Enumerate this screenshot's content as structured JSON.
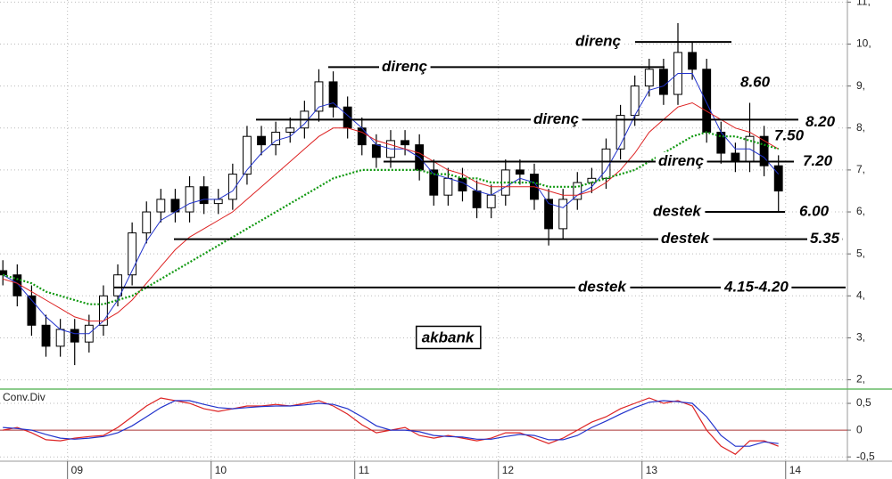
{
  "chart_data": [
    {
      "type": "candlestick",
      "x": [
        2008.55,
        2008.65,
        2008.75,
        2008.85,
        2008.95,
        2009.05,
        2009.15,
        2009.25,
        2009.35,
        2009.45,
        2009.55,
        2009.65,
        2009.75,
        2009.85,
        2009.95,
        2010.05,
        2010.15,
        2010.25,
        2010.35,
        2010.45,
        2010.55,
        2010.65,
        2010.75,
        2010.85,
        2010.95,
        2011.05,
        2011.15,
        2011.25,
        2011.35,
        2011.45,
        2011.55,
        2011.65,
        2011.75,
        2011.85,
        2011.95,
        2012.05,
        2012.15,
        2012.25,
        2012.35,
        2012.45,
        2012.55,
        2012.65,
        2012.75,
        2012.85,
        2012.95,
        2013.05,
        2013.15,
        2013.25,
        2013.35,
        2013.45,
        2013.55,
        2013.65,
        2013.75,
        2013.85,
        2013.95
      ],
      "open": [
        4.6,
        4.5,
        4.0,
        3.3,
        2.8,
        3.2,
        2.9,
        3.3,
        4.0,
        4.5,
        5.5,
        6.0,
        6.3,
        6.0,
        6.6,
        6.2,
        6.3,
        6.9,
        7.8,
        7.6,
        7.9,
        8.0,
        8.4,
        9.1,
        8.5,
        8.0,
        7.6,
        7.3,
        7.7,
        7.6,
        7.0,
        6.4,
        6.8,
        6.5,
        6.1,
        6.4,
        7.0,
        6.9,
        6.3,
        5.6,
        6.3,
        6.7,
        6.8,
        7.5,
        8.3,
        9.0,
        9.4,
        8.8,
        9.8,
        9.4,
        7.9,
        7.4,
        7.2,
        7.8,
        7.1
      ],
      "high": [
        4.85,
        4.75,
        4.25,
        3.55,
        3.45,
        3.45,
        3.55,
        4.25,
        4.75,
        5.75,
        6.25,
        6.55,
        6.55,
        6.85,
        6.85,
        6.55,
        7.15,
        8.05,
        8.05,
        8.15,
        8.25,
        8.65,
        9.4,
        9.35,
        8.75,
        8.25,
        7.85,
        7.95,
        7.95,
        7.85,
        7.25,
        7.05,
        7.05,
        6.75,
        6.65,
        7.25,
        7.25,
        7.15,
        6.55,
        6.55,
        6.95,
        7.05,
        7.75,
        8.55,
        9.25,
        9.65,
        9.65,
        10.5,
        10.05,
        9.65,
        8.15,
        7.65,
        8.6,
        8.05,
        7.35
      ],
      "low": [
        4.25,
        3.75,
        3.05,
        2.55,
        2.55,
        2.35,
        2.65,
        3.05,
        3.75,
        4.25,
        5.25,
        5.75,
        5.75,
        5.75,
        5.95,
        5.95,
        6.05,
        6.65,
        7.35,
        7.35,
        7.65,
        7.75,
        8.15,
        8.25,
        7.75,
        7.35,
        7.05,
        7.05,
        7.35,
        6.75,
        6.15,
        6.15,
        6.25,
        5.85,
        5.85,
        6.15,
        6.65,
        6.05,
        5.2,
        5.35,
        6.05,
        6.45,
        6.55,
        7.25,
        8.05,
        8.75,
        8.55,
        8.55,
        9.15,
        7.65,
        7.15,
        6.95,
        6.95,
        6.85,
        6.0
      ],
      "close": [
        4.5,
        4.0,
        3.3,
        2.8,
        3.2,
        2.9,
        3.3,
        4.0,
        4.5,
        5.5,
        6.0,
        6.3,
        6.0,
        6.6,
        6.2,
        6.3,
        6.9,
        7.8,
        7.6,
        7.9,
        8.0,
        8.4,
        9.1,
        8.5,
        8.0,
        7.6,
        7.3,
        7.7,
        7.6,
        7.0,
        6.4,
        6.8,
        6.5,
        6.1,
        6.4,
        7.0,
        6.9,
        6.3,
        5.6,
        6.3,
        6.7,
        6.8,
        7.5,
        8.3,
        9.0,
        9.4,
        8.8,
        9.8,
        9.4,
        7.9,
        7.4,
        7.2,
        7.8,
        7.1,
        6.5
      ],
      "candle_color": "#000000",
      "series": [
        {
          "color": "#2233cc",
          "dashed": false,
          "values": [
            4.5,
            4.3,
            3.9,
            3.5,
            3.2,
            3.1,
            3.1,
            3.4,
            3.9,
            4.6,
            5.3,
            5.8,
            6.0,
            6.2,
            6.3,
            6.3,
            6.5,
            7.0,
            7.4,
            7.7,
            7.8,
            8.1,
            8.5,
            8.6,
            8.3,
            8.0,
            7.6,
            7.5,
            7.5,
            7.3,
            6.9,
            6.8,
            6.7,
            6.5,
            6.4,
            6.6,
            6.8,
            6.7,
            6.2,
            6.1,
            6.4,
            6.6,
            7.0,
            7.6,
            8.3,
            8.9,
            9.0,
            9.3,
            9.3,
            8.6,
            7.9,
            7.5,
            7.5,
            7.3,
            6.9
          ]
        },
        {
          "color": "#dd2222",
          "dashed": false,
          "values": [
            4.4,
            4.3,
            4.1,
            3.9,
            3.7,
            3.5,
            3.4,
            3.4,
            3.6,
            3.9,
            4.3,
            4.7,
            5.1,
            5.4,
            5.6,
            5.8,
            6.0,
            6.3,
            6.6,
            6.9,
            7.2,
            7.5,
            7.8,
            8.0,
            8.0,
            7.9,
            7.7,
            7.6,
            7.5,
            7.4,
            7.2,
            7.0,
            6.9,
            6.7,
            6.6,
            6.6,
            6.6,
            6.6,
            6.5,
            6.4,
            6.4,
            6.5,
            6.7,
            7.0,
            7.4,
            7.9,
            8.2,
            8.5,
            8.6,
            8.4,
            8.2,
            8.0,
            7.9,
            7.7,
            7.5
          ]
        },
        {
          "color": "#119911",
          "dashed": true,
          "values": [
            4.5,
            4.4,
            4.3,
            4.1,
            4.0,
            3.9,
            3.8,
            3.8,
            3.9,
            4.0,
            4.2,
            4.4,
            4.6,
            4.8,
            5.0,
            5.2,
            5.4,
            5.6,
            5.8,
            6.0,
            6.2,
            6.4,
            6.6,
            6.8,
            6.9,
            7.0,
            7.0,
            7.0,
            7.0,
            7.0,
            6.9,
            6.9,
            6.8,
            6.8,
            6.7,
            6.7,
            6.7,
            6.7,
            6.6,
            6.6,
            6.6,
            6.7,
            6.8,
            6.9,
            7.0,
            7.2,
            7.4,
            7.6,
            7.8,
            7.9,
            7.8,
            7.8,
            7.7,
            7.6,
            7.5
          ]
        }
      ],
      "xlim": [
        2008.53,
        2014.43
      ],
      "xticks": [
        {
          "value": 2009,
          "label": "09"
        },
        {
          "value": 2010,
          "label": "10"
        },
        {
          "value": 2011,
          "label": "11"
        },
        {
          "value": 2012,
          "label": "12"
        },
        {
          "value": 2013,
          "label": "13"
        },
        {
          "value": 2014,
          "label": "14"
        }
      ],
      "ylim": [
        1.8,
        11.05
      ],
      "yticks": [
        {
          "value": 2,
          "label": "2,"
        },
        {
          "value": 3,
          "label": "3,"
        },
        {
          "value": 4,
          "label": "4,"
        },
        {
          "value": 5,
          "label": "5,"
        },
        {
          "value": 6,
          "label": "6,"
        },
        {
          "value": 7,
          "label": "7,"
        },
        {
          "value": 8,
          "label": "8,"
        },
        {
          "value": 9,
          "label": "9,"
        },
        {
          "value": 10,
          "label": "10,"
        },
        {
          "value": 11,
          "label": "11,"
        }
      ],
      "grid": true,
      "annotations": [
        {
          "text": "direnç",
          "level": 10.05
        },
        {
          "text": "direnç",
          "level": 9.45
        },
        {
          "text": "direnç",
          "level": 8.2,
          "label": "8.20"
        },
        {
          "text": "direnç",
          "level": 7.2,
          "label": "7.20"
        },
        {
          "text": "destek",
          "level": 6.0,
          "label": "6.00"
        },
        {
          "text": "destek",
          "level": 5.35,
          "label": "5.35"
        },
        {
          "text": "destek",
          "level": 4.2,
          "label": "4.15-4.20"
        }
      ],
      "notes": [
        "8.60",
        "7.50"
      ],
      "title": "akbank"
    },
    {
      "type": "line",
      "title": "Conv.Div",
      "x": [
        2008.55,
        2008.65,
        2008.75,
        2008.85,
        2008.95,
        2009.05,
        2009.15,
        2009.25,
        2009.35,
        2009.45,
        2009.55,
        2009.65,
        2009.75,
        2009.85,
        2009.95,
        2010.05,
        2010.15,
        2010.25,
        2010.35,
        2010.45,
        2010.55,
        2010.65,
        2010.75,
        2010.85,
        2010.95,
        2011.05,
        2011.15,
        2011.25,
        2011.35,
        2011.45,
        2011.55,
        2011.65,
        2011.75,
        2011.85,
        2011.95,
        2012.05,
        2012.15,
        2012.25,
        2012.35,
        2012.45,
        2012.55,
        2012.65,
        2012.75,
        2012.85,
        2012.95,
        2013.05,
        2013.15,
        2013.25,
        2013.35,
        2013.45,
        2013.55,
        2013.65,
        2013.75,
        2013.85,
        2013.95
      ],
      "series": [
        {
          "color": "#dd2222",
          "values": [
            0.0,
            0.05,
            -0.05,
            -0.18,
            -0.2,
            -0.15,
            -0.12,
            -0.1,
            0.05,
            0.25,
            0.45,
            0.6,
            0.55,
            0.5,
            0.4,
            0.35,
            0.4,
            0.45,
            0.45,
            0.48,
            0.45,
            0.5,
            0.55,
            0.45,
            0.3,
            0.1,
            -0.05,
            0.0,
            0.05,
            -0.1,
            -0.15,
            -0.1,
            -0.15,
            -0.2,
            -0.15,
            -0.05,
            -0.05,
            -0.15,
            -0.25,
            -0.15,
            0.0,
            0.15,
            0.25,
            0.4,
            0.5,
            0.6,
            0.5,
            0.55,
            0.45,
            0.0,
            -0.3,
            -0.45,
            -0.2,
            -0.2,
            -0.3
          ]
        },
        {
          "color": "#2233cc",
          "values": [
            0.05,
            0.03,
            0.0,
            -0.08,
            -0.15,
            -0.17,
            -0.15,
            -0.12,
            -0.05,
            0.08,
            0.25,
            0.42,
            0.55,
            0.55,
            0.48,
            0.42,
            0.4,
            0.42,
            0.44,
            0.45,
            0.45,
            0.47,
            0.5,
            0.48,
            0.4,
            0.25,
            0.08,
            0.0,
            0.0,
            -0.03,
            -0.1,
            -0.12,
            -0.13,
            -0.17,
            -0.17,
            -0.12,
            -0.08,
            -0.1,
            -0.18,
            -0.18,
            -0.1,
            0.05,
            0.17,
            0.3,
            0.42,
            0.52,
            0.55,
            0.53,
            0.5,
            0.25,
            -0.1,
            -0.3,
            -0.3,
            -0.22,
            -0.25
          ]
        }
      ],
      "xlim": [
        2008.53,
        2014.43
      ],
      "ylim": [
        -0.58,
        0.75
      ],
      "yticks": [
        {
          "value": 0.5,
          "label": "0,5"
        },
        0,
        {
          "value": -0.5,
          "label": "-0,5"
        }
      ],
      "baseline_color": "#aa3333"
    }
  ]
}
